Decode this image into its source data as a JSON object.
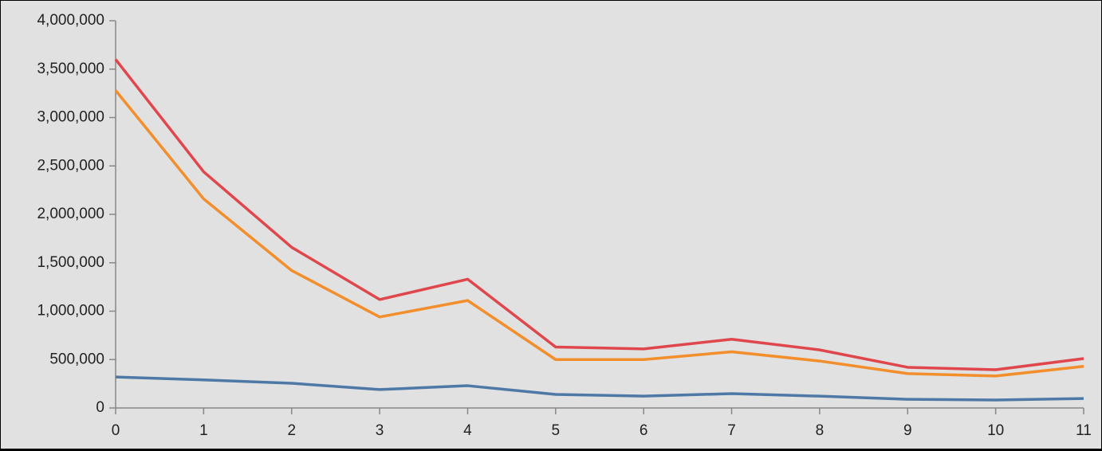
{
  "chart_data": {
    "type": "line",
    "x": [
      0,
      1,
      2,
      3,
      4,
      5,
      6,
      7,
      8,
      9,
      10,
      11
    ],
    "series": [
      {
        "color": "#e0474c",
        "values": [
          3600000,
          2440000,
          1660000,
          1120000,
          1330000,
          630000,
          610000,
          710000,
          600000,
          420000,
          395000,
          510000
        ]
      },
      {
        "color": "#f28e2b",
        "values": [
          3280000,
          2160000,
          1420000,
          940000,
          1110000,
          500000,
          500000,
          580000,
          485000,
          355000,
          330000,
          430000
        ]
      },
      {
        "color": "#4e79a7",
        "values": [
          320000,
          290000,
          255000,
          190000,
          230000,
          140000,
          122000,
          148000,
          122000,
          90000,
          82000,
          98000
        ]
      }
    ],
    "xlim": [
      0,
      11
    ],
    "xticks": [
      0,
      1,
      2,
      3,
      4,
      5,
      6,
      7,
      8,
      9,
      10,
      11
    ],
    "ylim": [
      0,
      4000000
    ],
    "yticks": [
      0,
      {
        "value": 500000,
        "label": "500,000"
      },
      {
        "value": 1000000,
        "label": "1,000,000"
      },
      {
        "value": 1500000,
        "label": "1,500,000"
      },
      {
        "value": 2000000,
        "label": "2,000,000"
      },
      {
        "value": 2500000,
        "label": "2,500,000"
      },
      {
        "value": 3000000,
        "label": "3,000,000"
      },
      {
        "value": 3500000,
        "label": "3,500,000"
      },
      {
        "value": 4000000,
        "label": "4,000,000"
      }
    ]
  }
}
